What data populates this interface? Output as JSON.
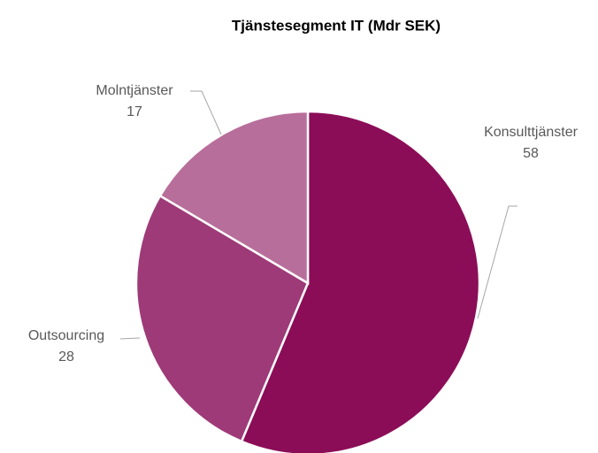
{
  "chart_data": {
    "type": "pie",
    "title": "Tjänstesegment IT (Mdr SEK)",
    "categories": [
      "Konsulttjänster",
      "Outsourcing",
      "Molntjänster"
    ],
    "values": [
      58,
      28,
      17
    ],
    "colors": [
      "#8b0d57",
      "#9e3a78",
      "#b86e9b"
    ]
  }
}
